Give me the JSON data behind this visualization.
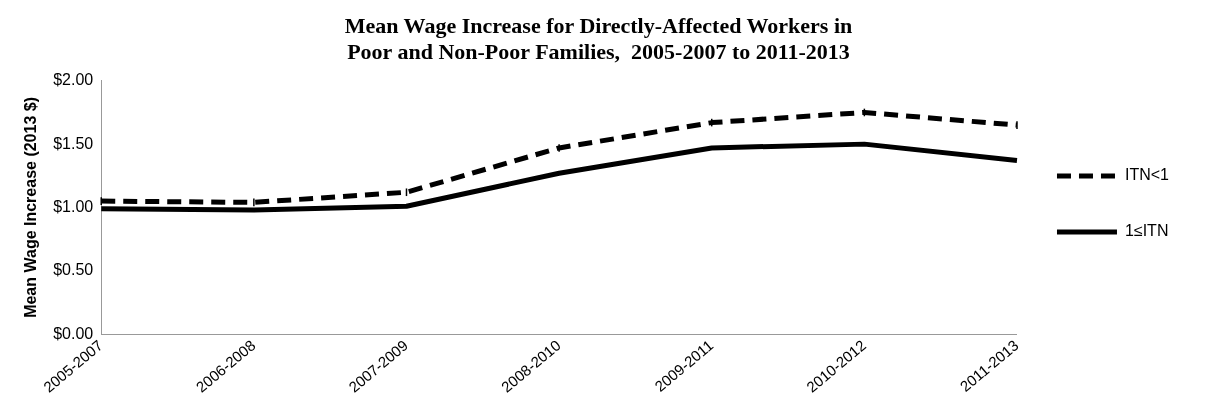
{
  "chart_data": {
    "type": "line",
    "title": "Mean Wage Increase for Directly-Affected Workers in\nPoor and Non-Poor Families,  2005-2007 to 2011-2013",
    "ylabel": "Mean Wage Increase (2013 $)",
    "categories": [
      "2005-2007",
      "2006-2008",
      "2007-2009",
      "2008-2010",
      "2009-2011",
      "2010-2012",
      "2011-2013"
    ],
    "series": [
      {
        "name": "ITN<1",
        "color": "#000000",
        "line_style": "dashed",
        "values": [
          1.05,
          1.04,
          1.12,
          1.47,
          1.67,
          1.75,
          1.65
        ],
        "errors": [
          0.03,
          0.03,
          0.03,
          0.03,
          0.03,
          0.03,
          0.03
        ]
      },
      {
        "name": "1≤ITN",
        "color": "#000000",
        "line_style": "solid",
        "values": [
          0.99,
          0.98,
          1.01,
          1.27,
          1.47,
          1.5,
          1.37
        ]
      }
    ],
    "ylim": [
      0,
      2
    ],
    "yticks": [
      {
        "value": 0,
        "label": "$0.00"
      },
      {
        "value": 0.5,
        "label": "$0.50"
      },
      {
        "value": 1,
        "label": "$1.00"
      },
      {
        "value": 1.5,
        "label": "$1.50"
      },
      {
        "value": 2,
        "label": "$2.00"
      }
    ],
    "grid": false,
    "legend": "right",
    "marker": "none"
  }
}
